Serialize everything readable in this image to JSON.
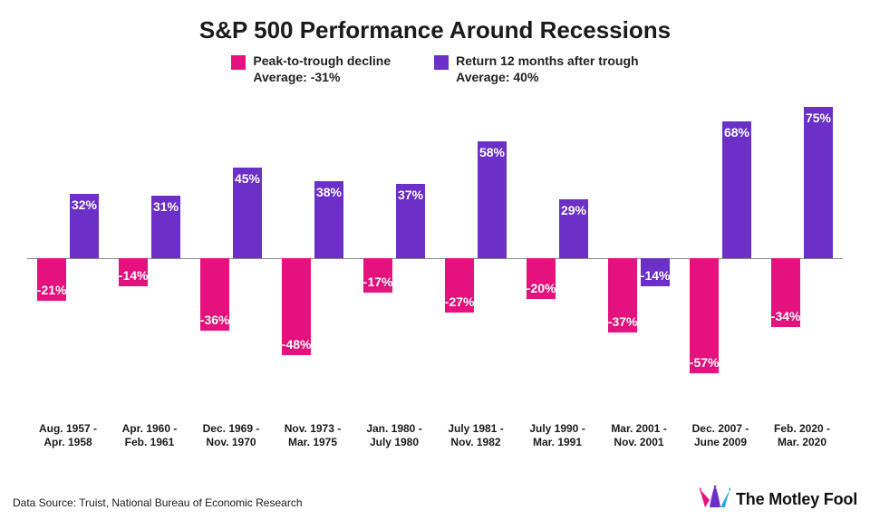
{
  "chart": {
    "type": "bar",
    "title": "S&P 500 Performance Around Recessions",
    "title_fontsize": 26,
    "background_color": "#ffffff",
    "baseline_color": "#888888",
    "plot": {
      "baseline_pct_from_top": 50,
      "y_range_pos": 75,
      "y_range_neg": 75,
      "bar_width_pct": 36,
      "bar_gap_pct": 4,
      "label_fontsize": 14,
      "label_color": "#ffffff"
    },
    "legend": {
      "fontsize": 14,
      "items": [
        {
          "label_line1": "Peak-to-trough decline",
          "label_line2": "Average: -31%",
          "color": "#e5117e"
        },
        {
          "label_line1": "Return 12 months after trough",
          "label_line2": "Average: 40%",
          "color": "#6c30c8"
        }
      ]
    },
    "series": [
      {
        "name": "decline",
        "color": "#e5117e"
      },
      {
        "name": "rebound",
        "color": "#6c30c8"
      }
    ],
    "categories": [
      {
        "label_line1": "Aug. 1957 -",
        "label_line2": "Apr. 1958",
        "decline": -21,
        "rebound": 32
      },
      {
        "label_line1": "Apr. 1960 -",
        "label_line2": "Feb. 1961",
        "decline": -14,
        "rebound": 31
      },
      {
        "label_line1": "Dec. 1969 -",
        "label_line2": "Nov. 1970",
        "decline": -36,
        "rebound": 45
      },
      {
        "label_line1": "Nov. 1973 -",
        "label_line2": "Mar. 1975",
        "decline": -48,
        "rebound": 38
      },
      {
        "label_line1": "Jan. 1980 -",
        "label_line2": "July 1980",
        "decline": -17,
        "rebound": 37
      },
      {
        "label_line1": "July 1981 -",
        "label_line2": "Nov. 1982",
        "decline": -27,
        "rebound": 58
      },
      {
        "label_line1": "July 1990 -",
        "label_line2": "Mar. 1991",
        "decline": -20,
        "rebound": 29
      },
      {
        "label_line1": "Mar. 2001 -",
        "label_line2": "Nov. 2001",
        "decline": -37,
        "rebound": -14
      },
      {
        "label_line1": "Dec. 2007 -",
        "label_line2": "June 2009",
        "decline": -57,
        "rebound": 68
      },
      {
        "label_line1": "Feb. 2020 -",
        "label_line2": "Mar. 2020",
        "decline": -34,
        "rebound": 75
      }
    ],
    "xaxis_fontsize": 12
  },
  "footer": {
    "source": "Data Source: Truist, National Bureau of Economic Research",
    "brand_text": "The Motley Fool",
    "brand_hat_colors": {
      "left": "#e5117e",
      "mid": "#6c30c8",
      "right": "#2aa8d8"
    }
  }
}
